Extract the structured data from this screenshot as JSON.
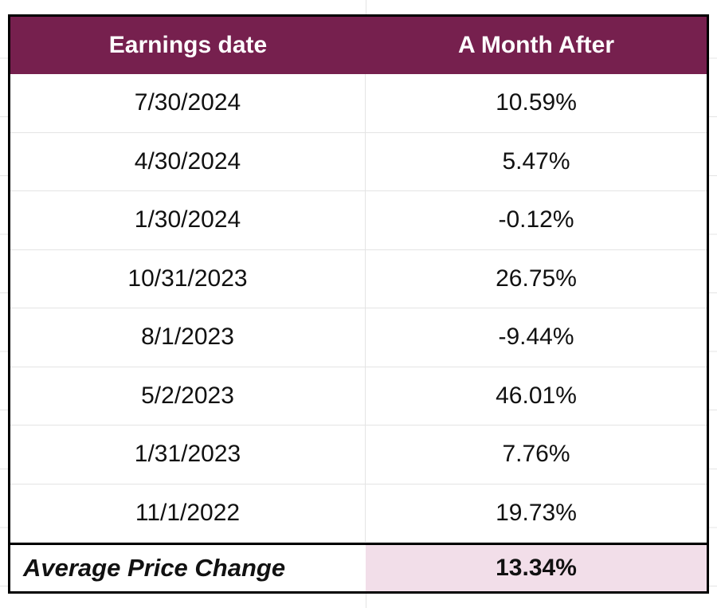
{
  "chart_data": {
    "type": "table",
    "columns": [
      "Earnings date",
      "A Month After"
    ],
    "rows": [
      [
        "7/30/2024",
        "10.59%"
      ],
      [
        "4/30/2024",
        "5.47%"
      ],
      [
        "1/30/2024",
        "-0.12%"
      ],
      [
        "10/31/2023",
        "26.75%"
      ],
      [
        "8/1/2023",
        "-9.44%"
      ],
      [
        "5/2/2023",
        "46.01%"
      ],
      [
        "1/31/2023",
        "7.76%"
      ],
      [
        "11/1/2022",
        "19.73%"
      ]
    ],
    "footer": {
      "label": "Average Price Change",
      "value": "13.34%"
    },
    "values_numeric": [
      10.59,
      5.47,
      -0.12,
      26.75,
      -9.44,
      46.01,
      7.76,
      19.73
    ],
    "average_numeric": 13.34
  },
  "colors": {
    "header_bg": "#76204E",
    "header_text": "#FFFFFF",
    "footer_value_bg": "#F2DEE9",
    "table_border": "#000000",
    "gridline": "#E4E4E4",
    "body_text": "#111111"
  }
}
